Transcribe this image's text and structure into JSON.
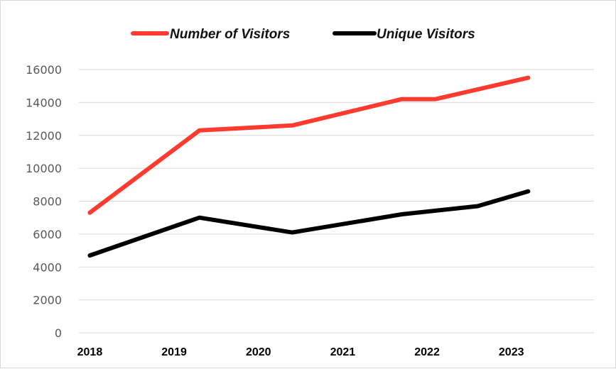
{
  "chart_data": {
    "type": "line",
    "title": "",
    "xlabel": "",
    "ylabel": "",
    "ylim": [
      0,
      16000
    ],
    "yticks": [
      0,
      2000,
      4000,
      6000,
      8000,
      10000,
      12000,
      14000,
      16000
    ],
    "ytick_labels": [
      "0",
      "2000",
      "4000",
      "6000",
      "8000",
      "10000",
      "12000",
      "14000",
      "16000"
    ],
    "grid": "horizontal",
    "legend_position": "top",
    "series": [
      {
        "name": "Number of Visitors",
        "color": "#ff3b30",
        "points": [
          {
            "x": 2018,
            "y": 7300
          },
          {
            "x": 2019.3,
            "y": 12300
          },
          {
            "x": 2020.4,
            "y": 12600
          },
          {
            "x": 2021.7,
            "y": 14200
          },
          {
            "x": 2022.1,
            "y": 14200
          },
          {
            "x": 2023.2,
            "y": 15500
          }
        ]
      },
      {
        "name": "Unique Visitors",
        "color": "#000000",
        "points": [
          {
            "x": 2018,
            "y": 4700
          },
          {
            "x": 2019.3,
            "y": 7000
          },
          {
            "x": 2020.4,
            "y": 6100
          },
          {
            "x": 2021.7,
            "y": 7200
          },
          {
            "x": 2022.6,
            "y": 7700
          },
          {
            "x": 2023.2,
            "y": 8600
          }
        ]
      }
    ],
    "x_ticks": [
      2018,
      2019,
      2020,
      2021,
      2022,
      2023
    ],
    "x_tick_labels": [
      "2018",
      "2019",
      "2020",
      "2021",
      "2022",
      "2023"
    ]
  }
}
